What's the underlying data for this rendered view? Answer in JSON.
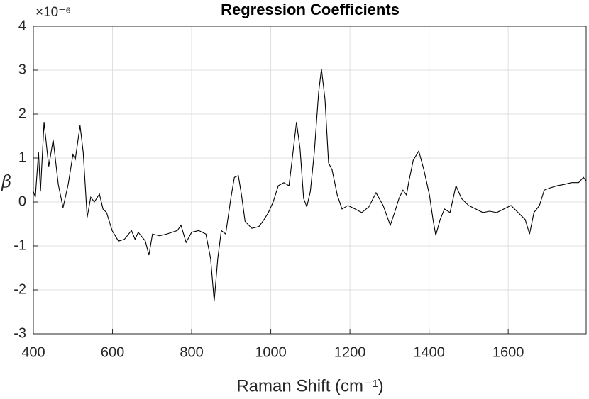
{
  "chart_data": {
    "type": "line",
    "title": "Regression Coefficients",
    "xlabel": "Raman Shift (cm⁻¹)",
    "ylabel": "β",
    "y_multiplier": "×10⁻⁶",
    "xlim": [
      400,
      1797
    ],
    "xticks": [
      400,
      600,
      800,
      1000,
      1200,
      1400,
      1600
    ],
    "ylim": [
      -3,
      4
    ],
    "yticks": [
      -3,
      -2,
      -1,
      0,
      1,
      2,
      3,
      4
    ],
    "grid": true,
    "x": [
      400,
      405,
      413,
      418,
      427,
      436,
      439,
      450,
      463,
      475,
      488,
      500,
      506,
      518,
      526,
      536,
      545,
      554,
      567,
      576,
      585,
      599,
      615,
      630,
      648,
      657,
      665,
      683,
      692,
      701,
      719,
      737,
      764,
      773,
      786,
      800,
      818,
      836,
      848,
      857,
      866,
      875,
      886,
      899,
      908,
      918,
      926,
      935,
      952,
      970,
      983,
      994,
      1006,
      1019,
      1033,
      1046,
      1053,
      1065,
      1074,
      1083,
      1091,
      1100,
      1110,
      1121,
      1128,
      1137,
      1146,
      1155,
      1168,
      1180,
      1195,
      1213,
      1230,
      1248,
      1266,
      1284,
      1302,
      1313,
      1324,
      1334,
      1343,
      1349,
      1360,
      1374,
      1387,
      1401,
      1410,
      1417,
      1428,
      1439,
      1453,
      1468,
      1482,
      1500,
      1518,
      1536,
      1553,
      1571,
      1589,
      1607,
      1625,
      1643,
      1654,
      1665,
      1679,
      1691,
      1706,
      1724,
      1742,
      1760,
      1778,
      1790,
      1797
    ],
    "series": [
      {
        "color": "#000000",
        "values": [
          0.24,
          0.11,
          1.13,
          0.24,
          1.82,
          1.05,
          0.81,
          1.42,
          0.4,
          -0.13,
          0.4,
          1.08,
          0.97,
          1.74,
          1.13,
          -0.35,
          0.11,
          0,
          0.18,
          -0.16,
          -0.24,
          -0.65,
          -0.89,
          -0.85,
          -0.65,
          -0.85,
          -0.69,
          -0.89,
          -1.21,
          -0.73,
          -0.77,
          -0.73,
          -0.65,
          -0.53,
          -0.92,
          -0.69,
          -0.65,
          -0.73,
          -1.29,
          -2.26,
          -1.29,
          -0.65,
          -0.73,
          0.08,
          0.56,
          0.6,
          0.16,
          -0.44,
          -0.6,
          -0.56,
          -0.4,
          -0.24,
          0,
          0.37,
          0.44,
          0.37,
          0.89,
          1.82,
          1.21,
          0.08,
          -0.11,
          0.24,
          1.13,
          2.5,
          3.03,
          2.34,
          0.89,
          0.73,
          0.16,
          -0.16,
          -0.08,
          -0.16,
          -0.24,
          -0.11,
          0.21,
          -0.08,
          -0.53,
          -0.24,
          0.08,
          0.27,
          0.16,
          0.47,
          0.95,
          1.16,
          0.73,
          0.16,
          -0.4,
          -0.76,
          -0.4,
          -0.16,
          -0.24,
          0.37,
          0.08,
          -0.08,
          -0.16,
          -0.24,
          -0.21,
          -0.24,
          -0.16,
          -0.08,
          -0.24,
          -0.4,
          -0.73,
          -0.24,
          -0.08,
          0.27,
          0.32,
          0.37,
          0.4,
          0.44,
          0.44,
          0.56,
          0.48
        ]
      }
    ]
  }
}
